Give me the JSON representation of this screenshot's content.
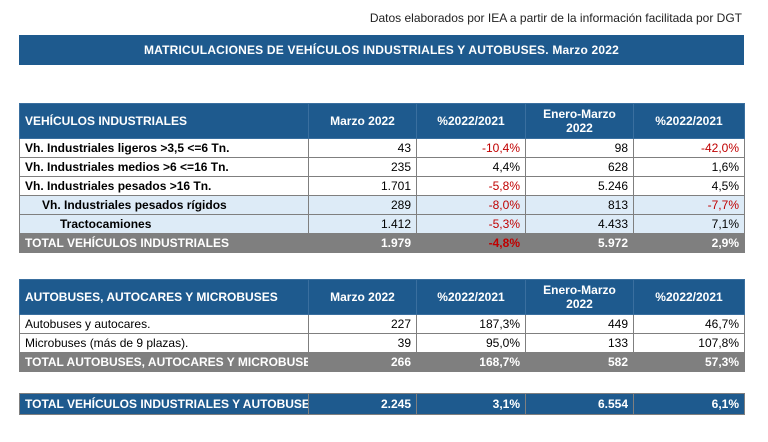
{
  "source_note": "Datos elaborados por IEA a partir de la información facilitada por DGT",
  "banner_title": "MATRICULACIONES DE VEHÍCULOS INDUSTRIALES Y AUTOBUSES.  Marzo 2022",
  "industrial": {
    "header": [
      "VEHÍCULOS INDUSTRIALES",
      "Marzo 2022",
      "%2022/2021",
      "Enero-Marzo\n2022",
      "%2022/2021"
    ],
    "rows": [
      {
        "label": "Vh. Industriales ligeros >3,5 <=6 Tn.",
        "v1": "43",
        "p1": "-10,4%",
        "v2": "98",
        "p2": "-42,0%"
      },
      {
        "label": "Vh. Industriales medios >6  <=16 Tn.",
        "v1": "235",
        "p1": "4,4%",
        "v2": "628",
        "p2": "1,6%"
      },
      {
        "label": "Vh. Industriales  pesados >16 Tn.",
        "v1": "1.701",
        "p1": "-5,8%",
        "v2": "5.246",
        "p2": "4,5%"
      },
      {
        "label": "Vh. Industriales pesados rígidos",
        "v1": "289",
        "p1": "-8,0%",
        "v2": "813",
        "p2": "-7,7%"
      },
      {
        "label": "Tractocamiones",
        "v1": "1.412",
        "p1": "-5,3%",
        "v2": "4.433",
        "p2": "7,1%"
      }
    ],
    "total": {
      "label": "TOTAL VEHÍCULOS INDUSTRIALES",
      "v1": "1.979",
      "p1": "-4,8%",
      "v2": "5.972",
      "p2": "2,9%"
    }
  },
  "buses": {
    "header": [
      "AUTOBUSES, AUTOCARES Y MICROBUSES",
      "Marzo 2022",
      "%2022/2021",
      "Enero-Marzo\n2022",
      "%2022/2021"
    ],
    "rows": [
      {
        "label": "Autobuses y autocares.",
        "v1": "227",
        "p1": "187,3%",
        "v2": "449",
        "p2": "46,7%"
      },
      {
        "label": "Microbuses (más de 9 plazas).",
        "v1": "39",
        "p1": "95,0%",
        "v2": "133",
        "p2": "107,8%"
      }
    ],
    "total": {
      "label": "TOTAL AUTOBUSES, AUTOCARES Y MICROBUSES",
      "v1": "266",
      "p1": "168,7%",
      "v2": "582",
      "p2": "57,3%"
    }
  },
  "grand_total": {
    "label": "TOTAL VEHÍCULOS INDUSTRIALES Y AUTOBUSES",
    "v1": "2.245",
    "p1": "3,1%",
    "v2": "6.554",
    "p2": "6,1%"
  },
  "colors": {
    "header_blue": "#1e5a8e",
    "sub_row_bg": "#ddebf7",
    "total_gray": "#7f7f7f",
    "negative_red": "#c00000"
  }
}
